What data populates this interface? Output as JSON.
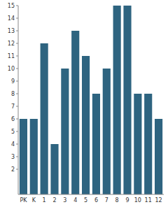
{
  "chart_data": {
    "type": "bar",
    "categories": [
      "PK",
      "K",
      "1",
      "2",
      "3",
      "4",
      "5",
      "6",
      "7",
      "8",
      "9",
      "10",
      "11",
      "12"
    ],
    "values": [
      6,
      6,
      12,
      4,
      10,
      13,
      11,
      8,
      10,
      15,
      15,
      8,
      8,
      6
    ],
    "color": "#2e6480",
    "ylim": [
      0,
      15
    ],
    "yticks": [
      2,
      3,
      4,
      5,
      6,
      7,
      8,
      9,
      10,
      11,
      12,
      13,
      14,
      15
    ],
    "grid": false
  }
}
